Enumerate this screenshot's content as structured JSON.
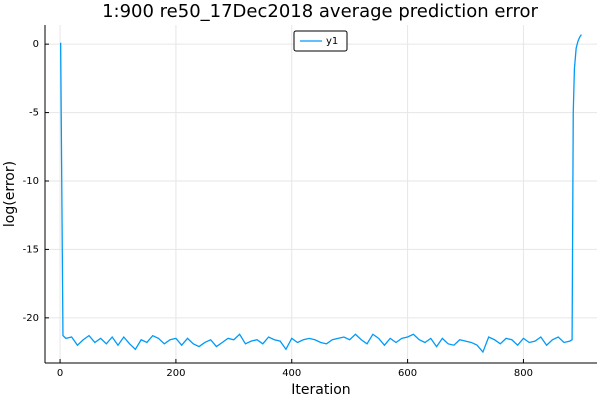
{
  "chart_data": {
    "type": "line",
    "title": "1:900 re50_17Dec2018 average prediction error",
    "x_label": "Iteration",
    "y_label": "log(error)",
    "x": [
      1,
      5,
      10,
      20,
      30,
      40,
      50,
      60,
      70,
      80,
      90,
      100,
      110,
      120,
      130,
      140,
      150,
      160,
      170,
      180,
      190,
      200,
      210,
      220,
      230,
      240,
      250,
      260,
      270,
      280,
      290,
      300,
      310,
      320,
      330,
      340,
      350,
      360,
      370,
      380,
      390,
      400,
      410,
      420,
      430,
      440,
      450,
      460,
      470,
      480,
      490,
      500,
      510,
      520,
      530,
      540,
      550,
      560,
      570,
      580,
      590,
      600,
      610,
      620,
      630,
      640,
      650,
      660,
      670,
      680,
      690,
      700,
      710,
      720,
      730,
      740,
      750,
      760,
      770,
      780,
      790,
      800,
      810,
      820,
      830,
      840,
      850,
      860,
      870,
      880,
      884,
      886,
      888,
      891,
      894,
      897,
      900
    ],
    "series": [
      {
        "name": "y1",
        "color": "#009af9",
        "values": [
          0.1,
          -21.3,
          -21.5,
          -21.4,
          -22.0,
          -21.6,
          -21.3,
          -21.8,
          -21.5,
          -21.9,
          -21.4,
          -22.0,
          -21.4,
          -21.9,
          -22.3,
          -21.6,
          -21.8,
          -21.3,
          -21.5,
          -21.9,
          -21.6,
          -21.5,
          -22.0,
          -21.5,
          -21.9,
          -22.1,
          -21.8,
          -21.6,
          -22.1,
          -21.8,
          -21.5,
          -21.6,
          -21.2,
          -21.9,
          -21.7,
          -21.6,
          -21.9,
          -21.4,
          -21.6,
          -21.7,
          -22.3,
          -21.5,
          -21.8,
          -21.6,
          -21.5,
          -21.6,
          -21.8,
          -21.9,
          -21.6,
          -21.5,
          -21.4,
          -21.6,
          -21.2,
          -21.6,
          -21.9,
          -21.2,
          -21.5,
          -22.0,
          -21.5,
          -21.8,
          -21.5,
          -21.4,
          -21.2,
          -21.6,
          -21.8,
          -21.5,
          -22.1,
          -21.5,
          -21.9,
          -22.0,
          -21.6,
          -21.7,
          -21.8,
          -22.0,
          -22.5,
          -21.4,
          -21.6,
          -21.9,
          -21.5,
          -21.6,
          -22.0,
          -21.5,
          -21.8,
          -21.7,
          -21.4,
          -22.0,
          -21.6,
          -21.4,
          -21.8,
          -21.7,
          -21.6,
          -5,
          -1.8,
          -0.3,
          0.2,
          0.5,
          0.7
        ]
      }
    ],
    "xlim": [
      -26,
      927
    ],
    "ylim": [
      -23.3,
      1.4
    ],
    "xticks": [
      0,
      200,
      400,
      600,
      800
    ],
    "yticks": [
      0,
      -5,
      -10,
      -15,
      -20
    ],
    "grid": true,
    "legend": "top"
  }
}
